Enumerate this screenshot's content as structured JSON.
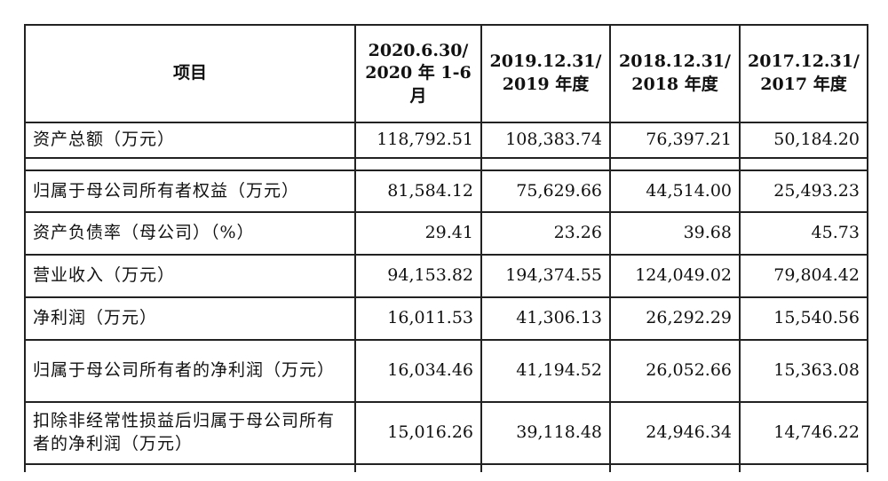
{
  "chart_data": {
    "type": "table",
    "columns": [
      "项目",
      "2020.6.30/ 2020 年 1-6 月",
      "2019.12.31/ 2019 年度",
      "2018.12.31/ 2018 年度",
      "2017.12.31/ 2017 年度"
    ],
    "rows": [
      [
        "资产总额（万元）",
        "118,792.51",
        "108,383.74",
        "76,397.21",
        "50,184.20"
      ],
      [
        "归属于母公司所有者权益（万元）",
        "81,584.12",
        "75,629.66",
        "44,514.00",
        "25,493.23"
      ],
      [
        "资产负债率（母公司）（%）",
        "29.41",
        "23.26",
        "39.68",
        "45.73"
      ],
      [
        "营业收入（万元）",
        "94,153.82",
        "194,374.55",
        "124,049.02",
        "79,804.42"
      ],
      [
        "净利润（万元）",
        "16,011.53",
        "41,306.13",
        "26,292.29",
        "15,540.56"
      ],
      [
        "归属于母公司所有者的净利润（万元）",
        "16,034.46",
        "41,194.52",
        "26,052.66",
        "15,363.08"
      ],
      [
        "扣除非经常性损益后归属于母公司所有者的净利润（万元）",
        "15,016.26",
        "39,118.48",
        "24,946.34",
        "14,746.22"
      ]
    ]
  }
}
